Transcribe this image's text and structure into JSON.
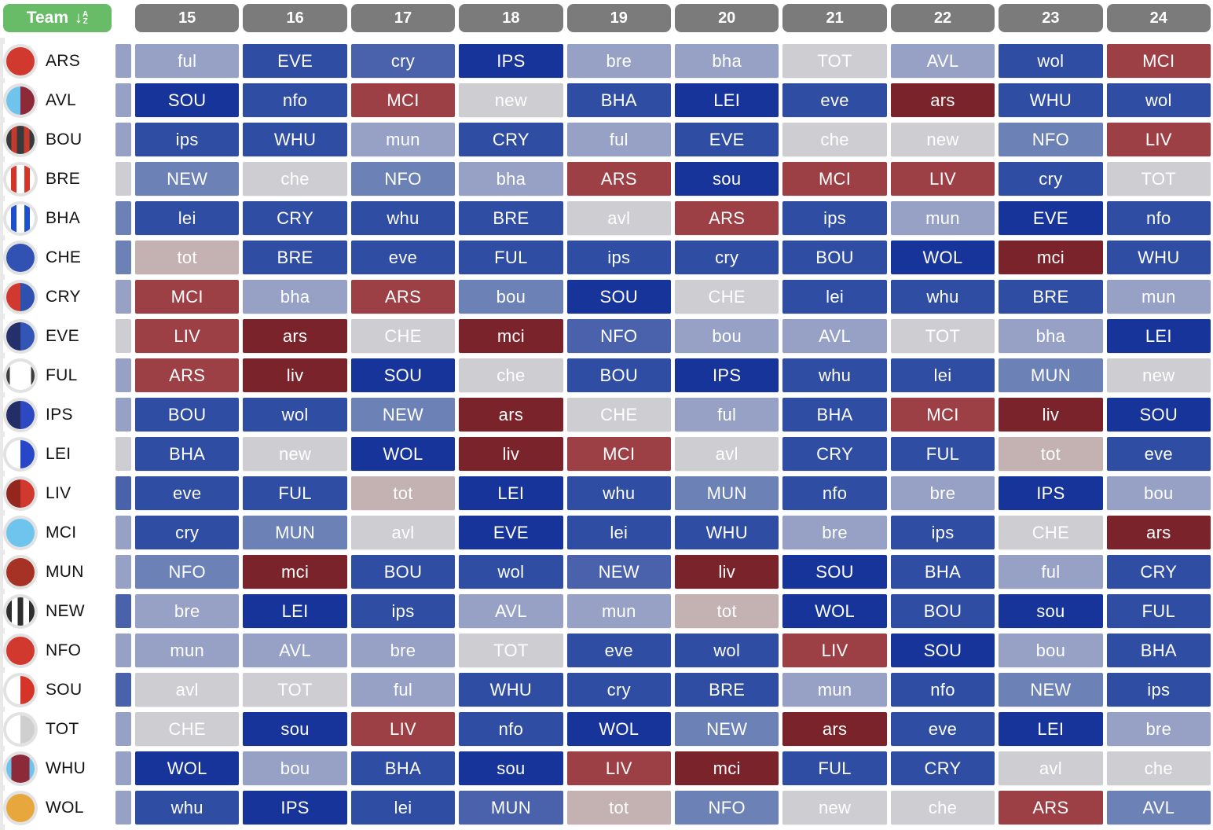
{
  "header": {
    "team_label": "Team",
    "sort_arrow": "↓",
    "sort_letter_top": "A",
    "sort_letter_bottom": "Z",
    "gameweeks": [
      "15",
      "16",
      "17",
      "18",
      "19",
      "20",
      "21",
      "22",
      "23",
      "24"
    ]
  },
  "colors": {
    "header_pill": "#7b7b7b",
    "team_button": "#68bc68"
  },
  "difficulty_colors": {
    "1": "#17349B",
    "2": "#2F4DA3",
    "3": "#4A62AB",
    "4": "#6C81B6",
    "5": "#96A1C5",
    "6": "#CECED2",
    "7": "#C4B1B1",
    "8": "#9C4046",
    "9": "#7B232B"
  },
  "teams": [
    {
      "abbr": "ARS",
      "badge_icon": "ars-badge",
      "prev_difficulty": 5,
      "fixtures": [
        {
          "opp": "ful",
          "difficulty": 5
        },
        {
          "opp": "EVE",
          "difficulty": 2
        },
        {
          "opp": "cry",
          "difficulty": 3
        },
        {
          "opp": "IPS",
          "difficulty": 1
        },
        {
          "opp": "bre",
          "difficulty": 5
        },
        {
          "opp": "bha",
          "difficulty": 5
        },
        {
          "opp": "TOT",
          "difficulty": 6
        },
        {
          "opp": "AVL",
          "difficulty": 5
        },
        {
          "opp": "wol",
          "difficulty": 2
        },
        {
          "opp": "MCI",
          "difficulty": 8
        }
      ]
    },
    {
      "abbr": "AVL",
      "badge_icon": "avl-badge",
      "prev_difficulty": 5,
      "fixtures": [
        {
          "opp": "SOU",
          "difficulty": 1
        },
        {
          "opp": "nfo",
          "difficulty": 2
        },
        {
          "opp": "MCI",
          "difficulty": 8
        },
        {
          "opp": "new",
          "difficulty": 6
        },
        {
          "opp": "BHA",
          "difficulty": 2
        },
        {
          "opp": "LEI",
          "difficulty": 1
        },
        {
          "opp": "eve",
          "difficulty": 2
        },
        {
          "opp": "ars",
          "difficulty": 9
        },
        {
          "opp": "WHU",
          "difficulty": 2
        },
        {
          "opp": "wol",
          "difficulty": 2
        }
      ]
    },
    {
      "abbr": "BOU",
      "badge_icon": "bou-badge",
      "prev_difficulty": 5,
      "fixtures": [
        {
          "opp": "ips",
          "difficulty": 2
        },
        {
          "opp": "WHU",
          "difficulty": 2
        },
        {
          "opp": "mun",
          "difficulty": 5
        },
        {
          "opp": "CRY",
          "difficulty": 2
        },
        {
          "opp": "ful",
          "difficulty": 5
        },
        {
          "opp": "EVE",
          "difficulty": 2
        },
        {
          "opp": "che",
          "difficulty": 6
        },
        {
          "opp": "new",
          "difficulty": 6
        },
        {
          "opp": "NFO",
          "difficulty": 4
        },
        {
          "opp": "LIV",
          "difficulty": 8
        }
      ]
    },
    {
      "abbr": "BRE",
      "badge_icon": "bre-badge",
      "prev_difficulty": 6,
      "fixtures": [
        {
          "opp": "NEW",
          "difficulty": 4
        },
        {
          "opp": "che",
          "difficulty": 6
        },
        {
          "opp": "NFO",
          "difficulty": 4
        },
        {
          "opp": "bha",
          "difficulty": 5
        },
        {
          "opp": "ARS",
          "difficulty": 8
        },
        {
          "opp": "sou",
          "difficulty": 1
        },
        {
          "opp": "MCI",
          "difficulty": 8
        },
        {
          "opp": "LIV",
          "difficulty": 8
        },
        {
          "opp": "cry",
          "difficulty": 2
        },
        {
          "opp": "TOT",
          "difficulty": 6
        }
      ]
    },
    {
      "abbr": "BHA",
      "badge_icon": "bha-badge",
      "prev_difficulty": 4,
      "fixtures": [
        {
          "opp": "lei",
          "difficulty": 2
        },
        {
          "opp": "CRY",
          "difficulty": 2
        },
        {
          "opp": "whu",
          "difficulty": 2
        },
        {
          "opp": "BRE",
          "difficulty": 2
        },
        {
          "opp": "avl",
          "difficulty": 6
        },
        {
          "opp": "ARS",
          "difficulty": 8
        },
        {
          "opp": "ips",
          "difficulty": 2
        },
        {
          "opp": "mun",
          "difficulty": 5
        },
        {
          "opp": "EVE",
          "difficulty": 1
        },
        {
          "opp": "nfo",
          "difficulty": 2
        }
      ]
    },
    {
      "abbr": "CHE",
      "badge_icon": "che-badge",
      "prev_difficulty": 4,
      "fixtures": [
        {
          "opp": "tot",
          "difficulty": 7
        },
        {
          "opp": "BRE",
          "difficulty": 2
        },
        {
          "opp": "eve",
          "difficulty": 2
        },
        {
          "opp": "FUL",
          "difficulty": 2
        },
        {
          "opp": "ips",
          "difficulty": 2
        },
        {
          "opp": "cry",
          "difficulty": 2
        },
        {
          "opp": "BOU",
          "difficulty": 2
        },
        {
          "opp": "WOL",
          "difficulty": 1
        },
        {
          "opp": "mci",
          "difficulty": 9
        },
        {
          "opp": "WHU",
          "difficulty": 2
        }
      ]
    },
    {
      "abbr": "CRY",
      "badge_icon": "cry-badge",
      "prev_difficulty": 5,
      "fixtures": [
        {
          "opp": "MCI",
          "difficulty": 8
        },
        {
          "opp": "bha",
          "difficulty": 5
        },
        {
          "opp": "ARS",
          "difficulty": 8
        },
        {
          "opp": "bou",
          "difficulty": 4
        },
        {
          "opp": "SOU",
          "difficulty": 1
        },
        {
          "opp": "CHE",
          "difficulty": 6
        },
        {
          "opp": "lei",
          "difficulty": 2
        },
        {
          "opp": "whu",
          "difficulty": 2
        },
        {
          "opp": "BRE",
          "difficulty": 2
        },
        {
          "opp": "mun",
          "difficulty": 5
        }
      ]
    },
    {
      "abbr": "EVE",
      "badge_icon": "eve-badge",
      "prev_difficulty": 6,
      "fixtures": [
        {
          "opp": "LIV",
          "difficulty": 8
        },
        {
          "opp": "ars",
          "difficulty": 9
        },
        {
          "opp": "CHE",
          "difficulty": 6
        },
        {
          "opp": "mci",
          "difficulty": 9
        },
        {
          "opp": "NFO",
          "difficulty": 3
        },
        {
          "opp": "bou",
          "difficulty": 5
        },
        {
          "opp": "AVL",
          "difficulty": 5
        },
        {
          "opp": "TOT",
          "difficulty": 6
        },
        {
          "opp": "bha",
          "difficulty": 5
        },
        {
          "opp": "LEI",
          "difficulty": 1
        }
      ]
    },
    {
      "abbr": "FUL",
      "badge_icon": "ful-badge",
      "prev_difficulty": 5,
      "fixtures": [
        {
          "opp": "ARS",
          "difficulty": 8
        },
        {
          "opp": "liv",
          "difficulty": 9
        },
        {
          "opp": "SOU",
          "difficulty": 1
        },
        {
          "opp": "che",
          "difficulty": 6
        },
        {
          "opp": "BOU",
          "difficulty": 2
        },
        {
          "opp": "IPS",
          "difficulty": 1
        },
        {
          "opp": "whu",
          "difficulty": 2
        },
        {
          "opp": "lei",
          "difficulty": 2
        },
        {
          "opp": "MUN",
          "difficulty": 4
        },
        {
          "opp": "new",
          "difficulty": 6
        }
      ]
    },
    {
      "abbr": "IPS",
      "badge_icon": "ips-badge",
      "prev_difficulty": 5,
      "fixtures": [
        {
          "opp": "BOU",
          "difficulty": 2
        },
        {
          "opp": "wol",
          "difficulty": 2
        },
        {
          "opp": "NEW",
          "difficulty": 4
        },
        {
          "opp": "ars",
          "difficulty": 9
        },
        {
          "opp": "CHE",
          "difficulty": 6
        },
        {
          "opp": "ful",
          "difficulty": 5
        },
        {
          "opp": "BHA",
          "difficulty": 2
        },
        {
          "opp": "MCI",
          "difficulty": 8
        },
        {
          "opp": "liv",
          "difficulty": 9
        },
        {
          "opp": "SOU",
          "difficulty": 1
        }
      ]
    },
    {
      "abbr": "LEI",
      "badge_icon": "lei-badge",
      "prev_difficulty": 6,
      "fixtures": [
        {
          "opp": "BHA",
          "difficulty": 2
        },
        {
          "opp": "new",
          "difficulty": 6
        },
        {
          "opp": "WOL",
          "difficulty": 1
        },
        {
          "opp": "liv",
          "difficulty": 9
        },
        {
          "opp": "MCI",
          "difficulty": 8
        },
        {
          "opp": "avl",
          "difficulty": 6
        },
        {
          "opp": "CRY",
          "difficulty": 2
        },
        {
          "opp": "FUL",
          "difficulty": 2
        },
        {
          "opp": "tot",
          "difficulty": 7
        },
        {
          "opp": "eve",
          "difficulty": 2
        }
      ]
    },
    {
      "abbr": "LIV",
      "badge_icon": "liv-badge",
      "prev_difficulty": 3,
      "fixtures": [
        {
          "opp": "eve",
          "difficulty": 2
        },
        {
          "opp": "FUL",
          "difficulty": 2
        },
        {
          "opp": "tot",
          "difficulty": 7
        },
        {
          "opp": "LEI",
          "difficulty": 1
        },
        {
          "opp": "whu",
          "difficulty": 2
        },
        {
          "opp": "MUN",
          "difficulty": 4
        },
        {
          "opp": "nfo",
          "difficulty": 2
        },
        {
          "opp": "bre",
          "difficulty": 5
        },
        {
          "opp": "IPS",
          "difficulty": 1
        },
        {
          "opp": "bou",
          "difficulty": 5
        }
      ]
    },
    {
      "abbr": "MCI",
      "badge_icon": "mci-badge",
      "prev_difficulty": 5,
      "fixtures": [
        {
          "opp": "cry",
          "difficulty": 2
        },
        {
          "opp": "MUN",
          "difficulty": 4
        },
        {
          "opp": "avl",
          "difficulty": 6
        },
        {
          "opp": "EVE",
          "difficulty": 1
        },
        {
          "opp": "lei",
          "difficulty": 2
        },
        {
          "opp": "WHU",
          "difficulty": 2
        },
        {
          "opp": "bre",
          "difficulty": 5
        },
        {
          "opp": "ips",
          "difficulty": 2
        },
        {
          "opp": "CHE",
          "difficulty": 6
        },
        {
          "opp": "ars",
          "difficulty": 9
        }
      ]
    },
    {
      "abbr": "MUN",
      "badge_icon": "mun-badge",
      "prev_difficulty": 5,
      "fixtures": [
        {
          "opp": "NFO",
          "difficulty": 4
        },
        {
          "opp": "mci",
          "difficulty": 9
        },
        {
          "opp": "BOU",
          "difficulty": 2
        },
        {
          "opp": "wol",
          "difficulty": 2
        },
        {
          "opp": "NEW",
          "difficulty": 3
        },
        {
          "opp": "liv",
          "difficulty": 9
        },
        {
          "opp": "SOU",
          "difficulty": 1
        },
        {
          "opp": "BHA",
          "difficulty": 2
        },
        {
          "opp": "ful",
          "difficulty": 5
        },
        {
          "opp": "CRY",
          "difficulty": 2
        }
      ]
    },
    {
      "abbr": "NEW",
      "badge_icon": "new-badge",
      "prev_difficulty": 3,
      "fixtures": [
        {
          "opp": "bre",
          "difficulty": 5
        },
        {
          "opp": "LEI",
          "difficulty": 1
        },
        {
          "opp": "ips",
          "difficulty": 2
        },
        {
          "opp": "AVL",
          "difficulty": 5
        },
        {
          "opp": "mun",
          "difficulty": 5
        },
        {
          "opp": "tot",
          "difficulty": 7
        },
        {
          "opp": "WOL",
          "difficulty": 1
        },
        {
          "opp": "BOU",
          "difficulty": 2
        },
        {
          "opp": "sou",
          "difficulty": 1
        },
        {
          "opp": "FUL",
          "difficulty": 2
        }
      ]
    },
    {
      "abbr": "NFO",
      "badge_icon": "nfo-badge",
      "prev_difficulty": 5,
      "fixtures": [
        {
          "opp": "mun",
          "difficulty": 5
        },
        {
          "opp": "AVL",
          "difficulty": 5
        },
        {
          "opp": "bre",
          "difficulty": 5
        },
        {
          "opp": "TOT",
          "difficulty": 6
        },
        {
          "opp": "eve",
          "difficulty": 2
        },
        {
          "opp": "wol",
          "difficulty": 2
        },
        {
          "opp": "LIV",
          "difficulty": 8
        },
        {
          "opp": "SOU",
          "difficulty": 1
        },
        {
          "opp": "bou",
          "difficulty": 5
        },
        {
          "opp": "BHA",
          "difficulty": 2
        }
      ]
    },
    {
      "abbr": "SOU",
      "badge_icon": "sou-badge",
      "prev_difficulty": 3,
      "fixtures": [
        {
          "opp": "avl",
          "difficulty": 6
        },
        {
          "opp": "TOT",
          "difficulty": 6
        },
        {
          "opp": "ful",
          "difficulty": 5
        },
        {
          "opp": "WHU",
          "difficulty": 2
        },
        {
          "opp": "cry",
          "difficulty": 2
        },
        {
          "opp": "BRE",
          "difficulty": 2
        },
        {
          "opp": "mun",
          "difficulty": 5
        },
        {
          "opp": "nfo",
          "difficulty": 2
        },
        {
          "opp": "NEW",
          "difficulty": 4
        },
        {
          "opp": "ips",
          "difficulty": 2
        }
      ]
    },
    {
      "abbr": "TOT",
      "badge_icon": "tot-badge",
      "prev_difficulty": 5,
      "fixtures": [
        {
          "opp": "CHE",
          "difficulty": 6
        },
        {
          "opp": "sou",
          "difficulty": 1
        },
        {
          "opp": "LIV",
          "difficulty": 8
        },
        {
          "opp": "nfo",
          "difficulty": 2
        },
        {
          "opp": "WOL",
          "difficulty": 1
        },
        {
          "opp": "NEW",
          "difficulty": 4
        },
        {
          "opp": "ars",
          "difficulty": 9
        },
        {
          "opp": "eve",
          "difficulty": 2
        },
        {
          "opp": "LEI",
          "difficulty": 1
        },
        {
          "opp": "bre",
          "difficulty": 5
        }
      ]
    },
    {
      "abbr": "WHU",
      "badge_icon": "whu-badge",
      "prev_difficulty": 5,
      "fixtures": [
        {
          "opp": "WOL",
          "difficulty": 1
        },
        {
          "opp": "bou",
          "difficulty": 5
        },
        {
          "opp": "BHA",
          "difficulty": 2
        },
        {
          "opp": "sou",
          "difficulty": 1
        },
        {
          "opp": "LIV",
          "difficulty": 8
        },
        {
          "opp": "mci",
          "difficulty": 9
        },
        {
          "opp": "FUL",
          "difficulty": 2
        },
        {
          "opp": "CRY",
          "difficulty": 2
        },
        {
          "opp": "avl",
          "difficulty": 6
        },
        {
          "opp": "che",
          "difficulty": 6
        }
      ]
    },
    {
      "abbr": "WOL",
      "badge_icon": "wol-badge",
      "prev_difficulty": 5,
      "fixtures": [
        {
          "opp": "whu",
          "difficulty": 2
        },
        {
          "opp": "IPS",
          "difficulty": 1
        },
        {
          "opp": "lei",
          "difficulty": 2
        },
        {
          "opp": "MUN",
          "difficulty": 3
        },
        {
          "opp": "tot",
          "difficulty": 7
        },
        {
          "opp": "NFO",
          "difficulty": 4
        },
        {
          "opp": "new",
          "difficulty": 6
        },
        {
          "opp": "che",
          "difficulty": 6
        },
        {
          "opp": "ARS",
          "difficulty": 8
        },
        {
          "opp": "AVL",
          "difficulty": 4
        }
      ]
    }
  ]
}
